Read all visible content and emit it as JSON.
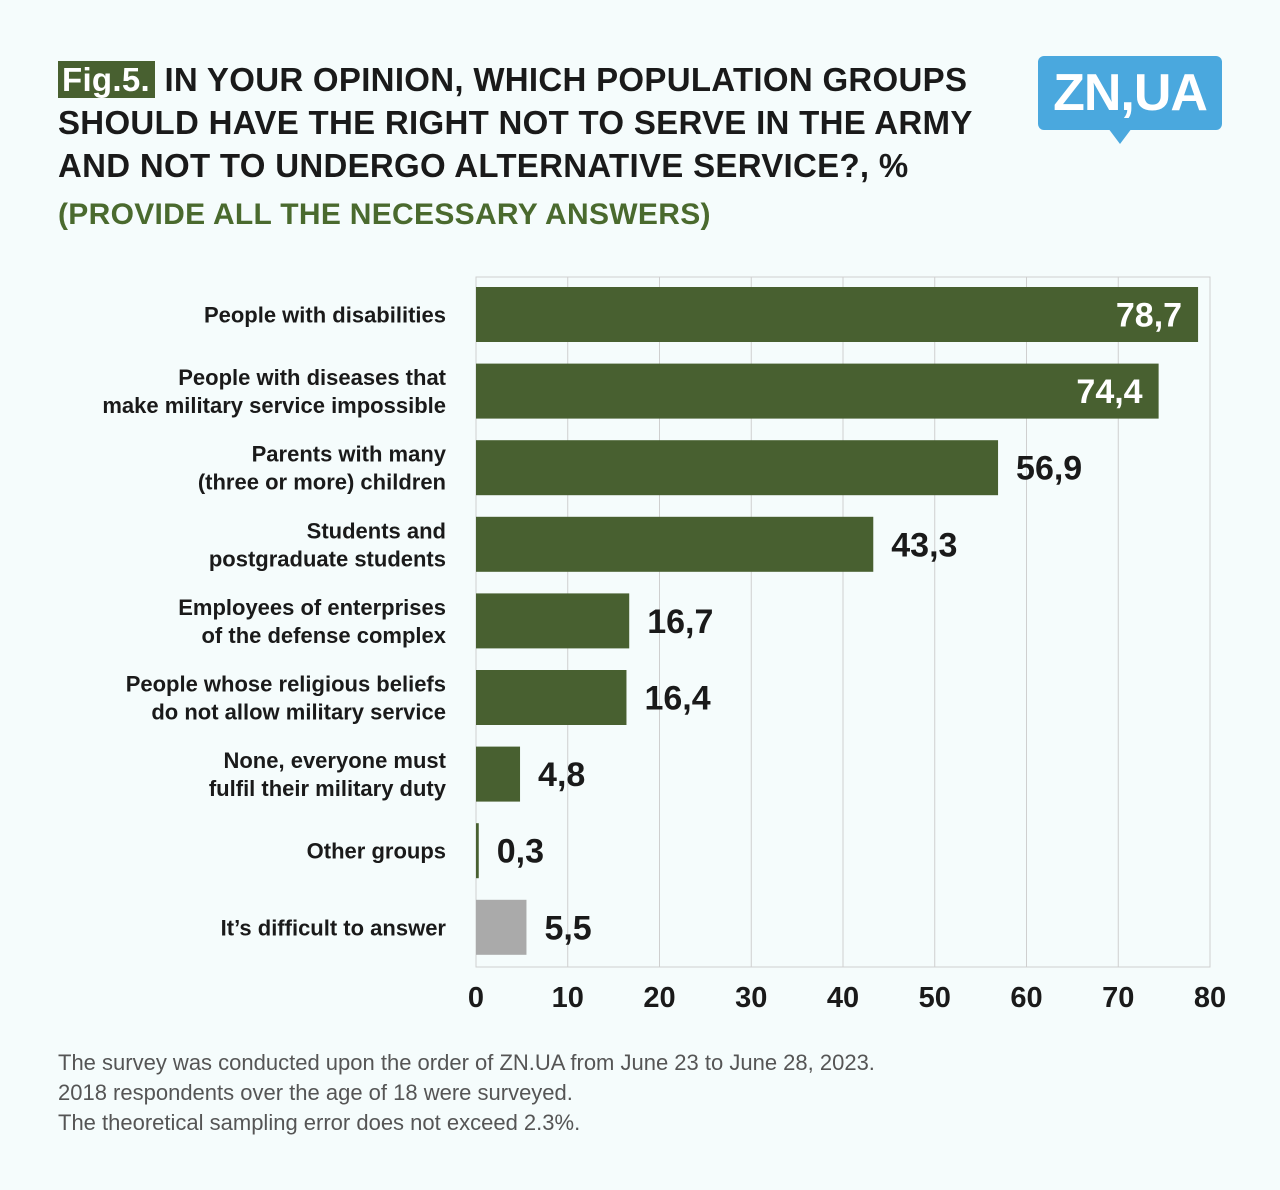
{
  "figure": {
    "tag": "Fig.5.",
    "title": "IN YOUR OPINION, WHICH POPULATION GROUPS SHOULD HAVE THE RIGHT NOT TO SERVE IN THE ARMY AND NOT TO UNDERGO ALTERNATIVE SERVICE?, %",
    "subtitle": "(PROVIDE ALL THE NECESSARY ANSWERS)"
  },
  "logo": {
    "text": "ZN,UA"
  },
  "colors": {
    "bar": "#486030",
    "bar_muted": "#aaaaaa",
    "accent": "#4aa8de",
    "subtitle": "#4a6a2e"
  },
  "chart_data": {
    "type": "bar",
    "orientation": "horizontal",
    "categories": [
      "People with disabilities",
      "People with diseases that make military service impossible",
      "Parents with many (three or more) children",
      "Students and postgraduate students",
      "Employees of enterprises of the defense complex",
      "People whose religious beliefs do not allow military service",
      "None, everyone must fulfil their military duty",
      "Other groups",
      "It’s difficult to answer"
    ],
    "category_lines": [
      [
        "People with disabilities"
      ],
      [
        "People with diseases that",
        "make military service impossible"
      ],
      [
        "Parents with many",
        "(three or more) children"
      ],
      [
        "Students and",
        "postgraduate students"
      ],
      [
        "Employees of enterprises",
        "of the defense complex"
      ],
      [
        "People whose religious beliefs",
        "do not allow military service"
      ],
      [
        "None, everyone must",
        "fulfil their military duty"
      ],
      [
        "Other groups"
      ],
      [
        "It’s difficult to answer"
      ]
    ],
    "values": [
      78.7,
      74.4,
      56.9,
      43.3,
      16.7,
      16.4,
      4.8,
      0.3,
      5.5
    ],
    "value_labels": [
      "78,7",
      "74,4",
      "56,9",
      "43,3",
      "16,7",
      "16,4",
      "4,8",
      "0,3",
      "5,5"
    ],
    "muted": [
      false,
      false,
      false,
      false,
      false,
      false,
      false,
      false,
      true
    ],
    "xlim": [
      0,
      80
    ],
    "xticks": [
      0,
      10,
      20,
      30,
      40,
      50,
      60,
      70,
      80
    ],
    "unit": "%",
    "grid": true
  },
  "footnote": [
    "The survey was conducted upon the order of ZN.UA from June 23 to June 28, 2023.",
    "2018 respondents over the age of 18 were surveyed.",
    "The theoretical sampling error does not exceed 2.3%."
  ]
}
